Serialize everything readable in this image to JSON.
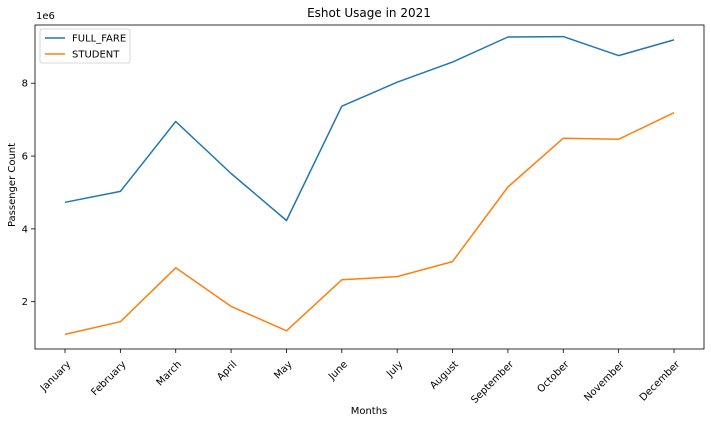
{
  "chart_data": {
    "type": "line",
    "title": "Eshot Usage in 2021",
    "xlabel": "Months",
    "ylabel": "Passenger Count",
    "y_scale_label": "1e6",
    "categories": [
      "January",
      "February",
      "March",
      "April",
      "May",
      "June",
      "July",
      "August",
      "September",
      "October",
      "November",
      "December"
    ],
    "ylim": [
      0.7,
      9.6
    ],
    "yticks": [
      2,
      4,
      6,
      8
    ],
    "grid": false,
    "legend_position": "top-left",
    "series": [
      {
        "name": "FULL_FARE",
        "color": "#1f77b4",
        "values": [
          4.73,
          5.03,
          6.95,
          5.52,
          4.23,
          7.37,
          8.03,
          8.58,
          9.27,
          9.28,
          8.76,
          9.19
        ]
      },
      {
        "name": "STUDENT",
        "color": "#ff7f0e",
        "values": [
          1.1,
          1.45,
          2.93,
          1.87,
          1.2,
          2.6,
          2.69,
          3.1,
          5.15,
          6.49,
          6.46,
          7.19
        ]
      }
    ]
  }
}
